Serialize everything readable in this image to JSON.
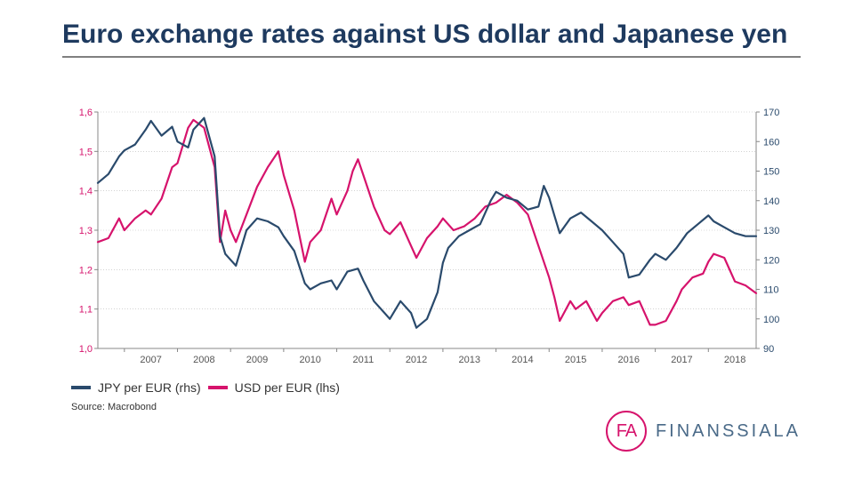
{
  "title": "Euro exchange rates against US dollar and Japanese yen",
  "source": "Source: Macrobond",
  "logo": {
    "mark": "FA",
    "word": "FINANSSIALA",
    "color": "#d6136c",
    "word_color": "#4a6a88"
  },
  "chart": {
    "type": "line",
    "background_color": "#ffffff",
    "grid_color": "#b8b8b8",
    "x": {
      "ticks": [
        "2007",
        "2008",
        "2009",
        "2010",
        "2011",
        "2012",
        "2013",
        "2014",
        "2015",
        "2016",
        "2017",
        "2018"
      ],
      "min": 2006.5,
      "max": 2018.9,
      "label_fontsize": 11
    },
    "y_left": {
      "label": "USD per EUR (lhs)",
      "color": "#d6136c",
      "min": 1.0,
      "max": 1.6,
      "ticks": [
        1.0,
        1.1,
        1.2,
        1.3,
        1.4,
        1.5,
        1.6
      ],
      "tick_labels": [
        "1,0",
        "1,1",
        "1,2",
        "1,3",
        "1,4",
        "1,5",
        "1,6"
      ],
      "label_fontsize": 11
    },
    "y_right": {
      "label": "JPY per EUR (rhs)",
      "color": "#2a4a6c",
      "min": 90,
      "max": 170,
      "ticks": [
        90,
        100,
        110,
        120,
        130,
        140,
        150,
        160,
        170
      ],
      "label_fontsize": 11
    },
    "line_width": 2.2,
    "series": [
      {
        "name": "USD per EUR (lhs)",
        "axis": "left",
        "color": "#d6136c",
        "data": [
          [
            2006.5,
            1.27
          ],
          [
            2006.7,
            1.28
          ],
          [
            2006.9,
            1.33
          ],
          [
            2007.0,
            1.3
          ],
          [
            2007.2,
            1.33
          ],
          [
            2007.4,
            1.35
          ],
          [
            2007.5,
            1.34
          ],
          [
            2007.7,
            1.38
          ],
          [
            2007.9,
            1.46
          ],
          [
            2008.0,
            1.47
          ],
          [
            2008.2,
            1.56
          ],
          [
            2008.3,
            1.58
          ],
          [
            2008.5,
            1.56
          ],
          [
            2008.7,
            1.46
          ],
          [
            2008.8,
            1.27
          ],
          [
            2008.9,
            1.35
          ],
          [
            2009.0,
            1.3
          ],
          [
            2009.1,
            1.27
          ],
          [
            2009.3,
            1.34
          ],
          [
            2009.5,
            1.41
          ],
          [
            2009.7,
            1.46
          ],
          [
            2009.9,
            1.5
          ],
          [
            2010.0,
            1.44
          ],
          [
            2010.2,
            1.35
          ],
          [
            2010.4,
            1.22
          ],
          [
            2010.5,
            1.27
          ],
          [
            2010.7,
            1.3
          ],
          [
            2010.9,
            1.38
          ],
          [
            2011.0,
            1.34
          ],
          [
            2011.2,
            1.4
          ],
          [
            2011.3,
            1.45
          ],
          [
            2011.4,
            1.48
          ],
          [
            2011.5,
            1.44
          ],
          [
            2011.7,
            1.36
          ],
          [
            2011.9,
            1.3
          ],
          [
            2012.0,
            1.29
          ],
          [
            2012.2,
            1.32
          ],
          [
            2012.4,
            1.26
          ],
          [
            2012.5,
            1.23
          ],
          [
            2012.7,
            1.28
          ],
          [
            2012.9,
            1.31
          ],
          [
            2013.0,
            1.33
          ],
          [
            2013.2,
            1.3
          ],
          [
            2013.4,
            1.31
          ],
          [
            2013.6,
            1.33
          ],
          [
            2013.8,
            1.36
          ],
          [
            2014.0,
            1.37
          ],
          [
            2014.2,
            1.39
          ],
          [
            2014.4,
            1.37
          ],
          [
            2014.6,
            1.34
          ],
          [
            2014.8,
            1.26
          ],
          [
            2015.0,
            1.18
          ],
          [
            2015.1,
            1.13
          ],
          [
            2015.2,
            1.07
          ],
          [
            2015.4,
            1.12
          ],
          [
            2015.5,
            1.1
          ],
          [
            2015.7,
            1.12
          ],
          [
            2015.9,
            1.07
          ],
          [
            2016.0,
            1.09
          ],
          [
            2016.2,
            1.12
          ],
          [
            2016.4,
            1.13
          ],
          [
            2016.5,
            1.11
          ],
          [
            2016.7,
            1.12
          ],
          [
            2016.9,
            1.06
          ],
          [
            2017.0,
            1.06
          ],
          [
            2017.2,
            1.07
          ],
          [
            2017.4,
            1.12
          ],
          [
            2017.5,
            1.15
          ],
          [
            2017.7,
            1.18
          ],
          [
            2017.9,
            1.19
          ],
          [
            2018.0,
            1.22
          ],
          [
            2018.1,
            1.24
          ],
          [
            2018.3,
            1.23
          ],
          [
            2018.5,
            1.17
          ],
          [
            2018.7,
            1.16
          ],
          [
            2018.9,
            1.14
          ]
        ]
      },
      {
        "name": "JPY per EUR (rhs)",
        "axis": "right",
        "color": "#2a4a6c",
        "data": [
          [
            2006.5,
            146
          ],
          [
            2006.7,
            149
          ],
          [
            2006.9,
            155
          ],
          [
            2007.0,
            157
          ],
          [
            2007.2,
            159
          ],
          [
            2007.4,
            164
          ],
          [
            2007.5,
            167
          ],
          [
            2007.7,
            162
          ],
          [
            2007.9,
            165
          ],
          [
            2008.0,
            160
          ],
          [
            2008.2,
            158
          ],
          [
            2008.3,
            164
          ],
          [
            2008.5,
            168
          ],
          [
            2008.7,
            155
          ],
          [
            2008.8,
            128
          ],
          [
            2008.9,
            122
          ],
          [
            2009.0,
            120
          ],
          [
            2009.1,
            118
          ],
          [
            2009.3,
            130
          ],
          [
            2009.5,
            134
          ],
          [
            2009.7,
            133
          ],
          [
            2009.9,
            131
          ],
          [
            2010.0,
            128
          ],
          [
            2010.2,
            123
          ],
          [
            2010.4,
            112
          ],
          [
            2010.5,
            110
          ],
          [
            2010.7,
            112
          ],
          [
            2010.9,
            113
          ],
          [
            2011.0,
            110
          ],
          [
            2011.2,
            116
          ],
          [
            2011.4,
            117
          ],
          [
            2011.5,
            113
          ],
          [
            2011.7,
            106
          ],
          [
            2011.9,
            102
          ],
          [
            2012.0,
            100
          ],
          [
            2012.2,
            106
          ],
          [
            2012.4,
            102
          ],
          [
            2012.5,
            97
          ],
          [
            2012.7,
            100
          ],
          [
            2012.9,
            109
          ],
          [
            2013.0,
            119
          ],
          [
            2013.1,
            124
          ],
          [
            2013.3,
            128
          ],
          [
            2013.5,
            130
          ],
          [
            2013.7,
            132
          ],
          [
            2013.9,
            140
          ],
          [
            2014.0,
            143
          ],
          [
            2014.2,
            141
          ],
          [
            2014.4,
            140
          ],
          [
            2014.6,
            137
          ],
          [
            2014.8,
            138
          ],
          [
            2014.9,
            145
          ],
          [
            2015.0,
            141
          ],
          [
            2015.1,
            135
          ],
          [
            2015.2,
            129
          ],
          [
            2015.4,
            134
          ],
          [
            2015.6,
            136
          ],
          [
            2015.8,
            133
          ],
          [
            2016.0,
            130
          ],
          [
            2016.2,
            126
          ],
          [
            2016.4,
            122
          ],
          [
            2016.5,
            114
          ],
          [
            2016.7,
            115
          ],
          [
            2016.9,
            120
          ],
          [
            2017.0,
            122
          ],
          [
            2017.2,
            120
          ],
          [
            2017.4,
            124
          ],
          [
            2017.6,
            129
          ],
          [
            2017.8,
            132
          ],
          [
            2018.0,
            135
          ],
          [
            2018.1,
            133
          ],
          [
            2018.3,
            131
          ],
          [
            2018.5,
            129
          ],
          [
            2018.7,
            128
          ],
          [
            2018.9,
            128
          ]
        ]
      }
    ],
    "legend": {
      "items": [
        {
          "swatch": "#2a4a6c",
          "label": "JPY per EUR (rhs)"
        },
        {
          "swatch": "#d6136c",
          "label": "USD per EUR (lhs)"
        }
      ],
      "fontsize": 14
    }
  }
}
